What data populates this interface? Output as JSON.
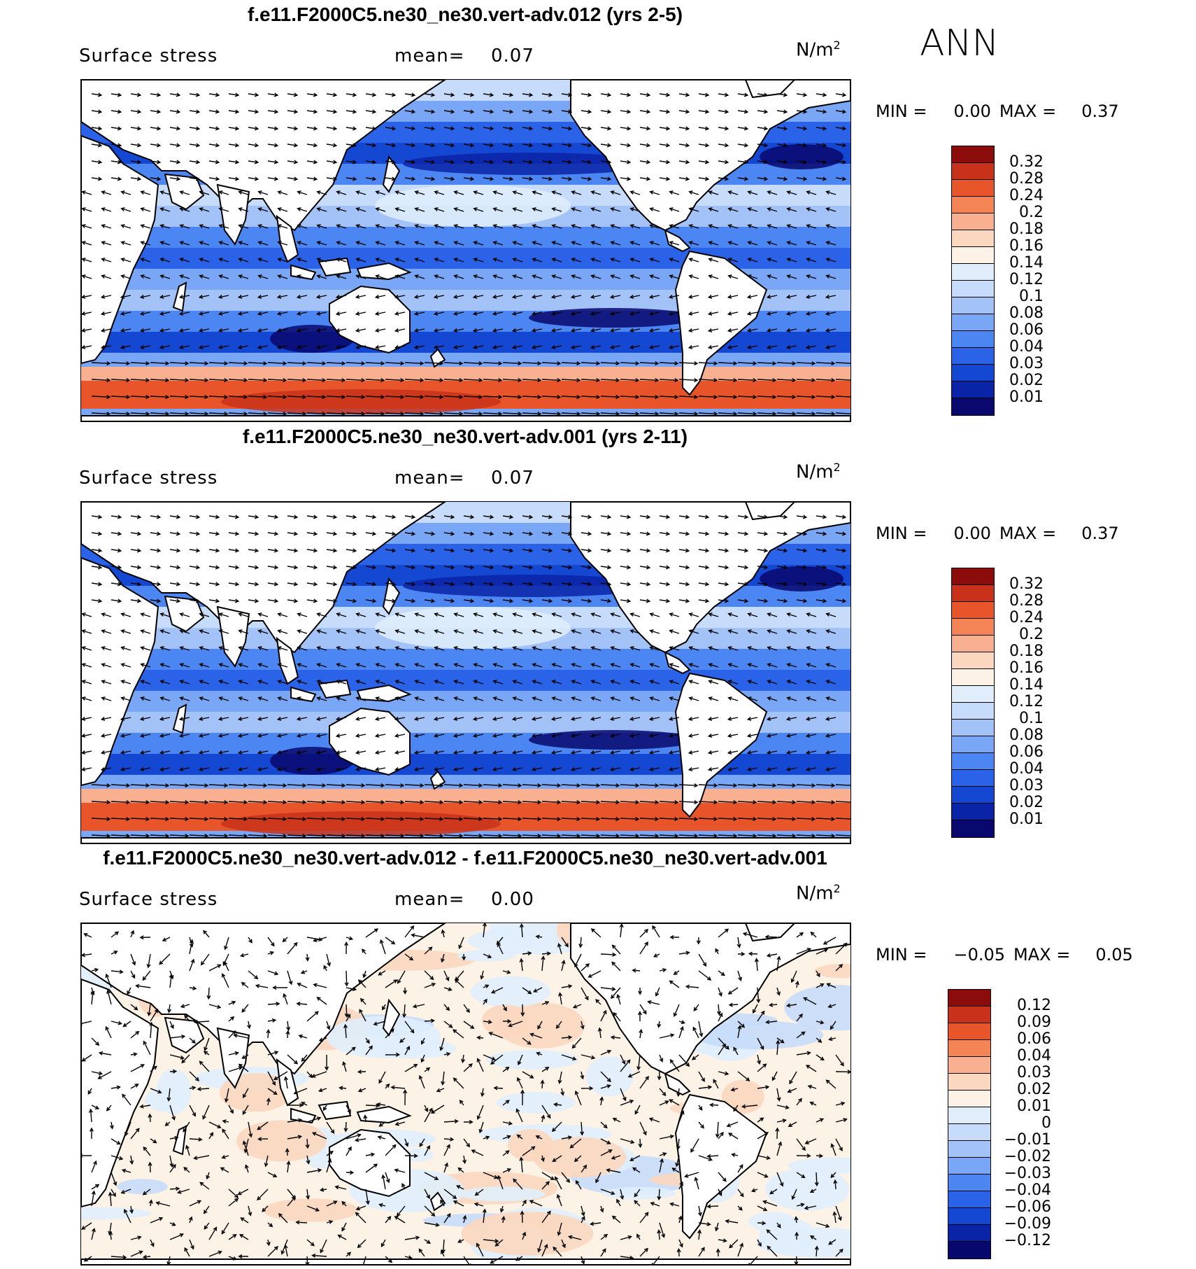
{
  "season_label": "ANN",
  "colors": {
    "seq": [
      "#08086e",
      "#0a24a8",
      "#1448d2",
      "#2a62e8",
      "#4c86f2",
      "#7aa6f6",
      "#a2c2f8",
      "#c6dcfa",
      "#e0eefc",
      "#fdf2e6",
      "#fbd7bf",
      "#f9b090",
      "#f48455",
      "#e8552a",
      "#c8321a",
      "#8c0c0c"
    ],
    "diff": [
      "#08086e",
      "#0a24a8",
      "#1448d2",
      "#2a62e8",
      "#4c86f2",
      "#7aa6f6",
      "#a2c2f8",
      "#c6dcfa",
      "#e0eefc",
      "#fdf2e6",
      "#fbd7bf",
      "#f9b090",
      "#f48455",
      "#e8552a",
      "#c8321a",
      "#8c0c0c"
    ]
  },
  "panels": [
    {
      "title": "f.e11.F2000C5.ne30_ne30.vert-adv.012 (yrs 2-5)",
      "variable": "Surface stress",
      "mean_label": "mean=",
      "mean_value": "0.07",
      "units_base": "N/m",
      "units_exp": "2",
      "min_label": "MIN =",
      "min_value": "0.00",
      "max_label": "MAX =",
      "max_value": "0.37",
      "levels": [
        "0.32",
        "0.28",
        "0.24",
        "0.2",
        "0.18",
        "0.16",
        "0.14",
        "0.12",
        "0.1",
        "0.08",
        "0.06",
        "0.04",
        "0.03",
        "0.02",
        "0.01"
      ],
      "palette": "seq",
      "map_style": "full"
    },
    {
      "title": "f.e11.F2000C5.ne30_ne30.vert-adv.001 (yrs 2-11)",
      "variable": "Surface stress",
      "mean_label": "mean=",
      "mean_value": "0.07",
      "units_base": "N/m",
      "units_exp": "2",
      "min_label": "MIN =",
      "min_value": "0.00",
      "max_label": "MAX =",
      "max_value": "0.37",
      "levels": [
        "0.32",
        "0.28",
        "0.24",
        "0.2",
        "0.18",
        "0.16",
        "0.14",
        "0.12",
        "0.1",
        "0.08",
        "0.06",
        "0.04",
        "0.03",
        "0.02",
        "0.01"
      ],
      "palette": "seq",
      "map_style": "full"
    },
    {
      "title": "f.e11.F2000C5.ne30_ne30.vert-adv.012 - f.e11.F2000C5.ne30_ne30.vert-adv.001",
      "variable": "Surface stress",
      "mean_label": "mean=",
      "mean_value": "0.00",
      "units_base": "N/m",
      "units_exp": "2",
      "min_label": "MIN =",
      "min_value": "−0.05",
      "max_label": "MAX =",
      "max_value": "0.05",
      "levels": [
        "0.12",
        "0.09",
        "0.06",
        "0.04",
        "0.03",
        "0.02",
        "0.01",
        "0",
        "−0.01",
        "−0.02",
        "−0.03",
        "−0.04",
        "−0.06",
        "−0.09",
        "−0.12"
      ],
      "palette": "diff",
      "map_style": "diff"
    }
  ]
}
